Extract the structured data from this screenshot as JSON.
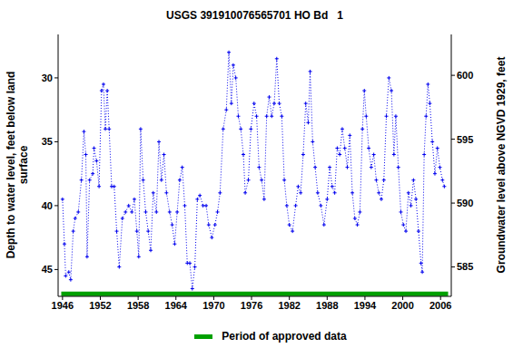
{
  "chart_data": {
    "type": "line",
    "title": "USGS 391910076565701 HO Bd   1",
    "y_label": "Depth to water level, feet below land surface",
    "y2_label": "Groundwater level above NGVD 1929, feet",
    "color": "#0000ee",
    "marker": "plus",
    "line_style": "dotted",
    "xlim": [
      1945.3,
      2007.7
    ],
    "xticks": [
      1946,
      1952,
      1958,
      1964,
      1970,
      1976,
      1982,
      1988,
      1994,
      2000,
      2006
    ],
    "ylim": [
      47.1,
      26.6
    ],
    "yticks": [
      30,
      35,
      40,
      45
    ],
    "y2lim": [
      582.7,
      603.2
    ],
    "y2ticks": [
      585,
      590,
      595,
      600
    ],
    "grid": false,
    "x": [
      1946.0,
      1946.3,
      1946.5,
      1947.0,
      1947.3,
      1947.7,
      1948.0,
      1948.5,
      1949.0,
      1949.4,
      1949.7,
      1949.9,
      1950.3,
      1950.8,
      1951.0,
      1951.4,
      1951.8,
      1952.2,
      1952.5,
      1952.8,
      1953.1,
      1953.4,
      1953.8,
      1954.2,
      1954.6,
      1955.0,
      1955.5,
      1956.0,
      1956.5,
      1957.0,
      1957.4,
      1957.8,
      1958.1,
      1958.4,
      1958.8,
      1959.2,
      1959.6,
      1960.0,
      1960.4,
      1960.9,
      1961.3,
      1961.7,
      1962.1,
      1962.5,
      1963.0,
      1963.4,
      1963.8,
      1964.2,
      1964.6,
      1965.0,
      1965.4,
      1965.8,
      1966.2,
      1966.6,
      1967.0,
      1967.4,
      1967.8,
      1968.3,
      1968.8,
      1969.2,
      1969.7,
      1970.2,
      1970.6,
      1971.0,
      1971.5,
      1972.0,
      1972.4,
      1972.8,
      1973.1,
      1973.5,
      1973.9,
      1974.3,
      1974.7,
      1975.0,
      1975.5,
      1975.9,
      1976.4,
      1976.8,
      1977.2,
      1977.6,
      1978.0,
      1978.4,
      1978.8,
      1979.2,
      1979.6,
      1980.0,
      1980.4,
      1980.8,
      1981.2,
      1981.6,
      1982.0,
      1982.5,
      1983.0,
      1983.4,
      1983.8,
      1984.2,
      1984.6,
      1985.0,
      1985.3,
      1985.7,
      1986.1,
      1986.5,
      1987.0,
      1987.5,
      1988.0,
      1988.4,
      1988.8,
      1989.2,
      1989.6,
      1990.0,
      1990.4,
      1990.8,
      1991.2,
      1991.6,
      1992.0,
      1992.4,
      1992.8,
      1993.2,
      1993.6,
      1993.9,
      1994.2,
      1994.6,
      1995.0,
      1995.4,
      1995.8,
      1996.2,
      1996.6,
      1997.0,
      1997.4,
      1997.8,
      1998.2,
      1998.6,
      1998.9,
      1999.3,
      1999.7,
      2000.1,
      2000.5,
      2000.9,
      2001.3,
      2001.7,
      2002.1,
      2002.5,
      2002.9,
      2003.1,
      2003.4,
      2003.7,
      2004.0,
      2004.3,
      2004.7,
      2005.1,
      2005.5,
      2005.9,
      2006.3,
      2006.6
    ],
    "values": [
      39.5,
      43,
      45.5,
      45.2,
      45.8,
      42,
      41,
      40.5,
      38,
      34.2,
      36,
      44,
      38,
      37.5,
      35.5,
      36.5,
      38.5,
      31,
      30.5,
      34,
      31,
      34,
      38.5,
      38.5,
      42,
      44.8,
      41,
      40.5,
      40,
      40.5,
      39.5,
      42,
      44,
      34,
      38,
      40.5,
      42,
      43.5,
      39,
      40.5,
      35,
      38,
      36,
      39,
      40.5,
      41.5,
      43,
      40.5,
      38,
      37,
      40,
      44.5,
      44.5,
      46.5,
      44.8,
      39.5,
      39.2,
      40,
      40,
      41.5,
      42.5,
      41.5,
      40.5,
      39,
      34,
      32.5,
      28,
      32,
      29,
      30,
      33,
      34,
      36,
      39,
      38,
      34,
      32,
      33,
      37,
      38,
      39.5,
      33,
      31.5,
      33,
      32,
      28.5,
      32,
      33,
      38,
      40,
      41.5,
      42,
      40,
      38.5,
      39,
      36,
      32,
      33.5,
      29.5,
      35,
      37,
      39,
      40,
      41.5,
      39.5,
      37,
      38.5,
      39,
      35.5,
      36,
      34,
      35.5,
      37,
      34.5,
      39,
      41,
      41.5,
      40.5,
      34,
      31,
      33,
      35.5,
      37,
      36,
      38,
      39,
      39.5,
      38,
      33,
      30,
      31,
      36,
      33,
      37,
      40.5,
      41.5,
      42,
      39,
      40,
      38,
      39.5,
      42,
      44.5,
      45.2,
      36,
      33,
      30.5,
      32,
      35,
      37.5,
      35.5,
      37,
      38,
      38.5
    ],
    "series": [
      {
        "name": "Period of approved data",
        "color": "#00a000",
        "x": [
          1945.8,
          2007.2
        ],
        "values": [
          46.9,
          46.9
        ]
      }
    ]
  }
}
